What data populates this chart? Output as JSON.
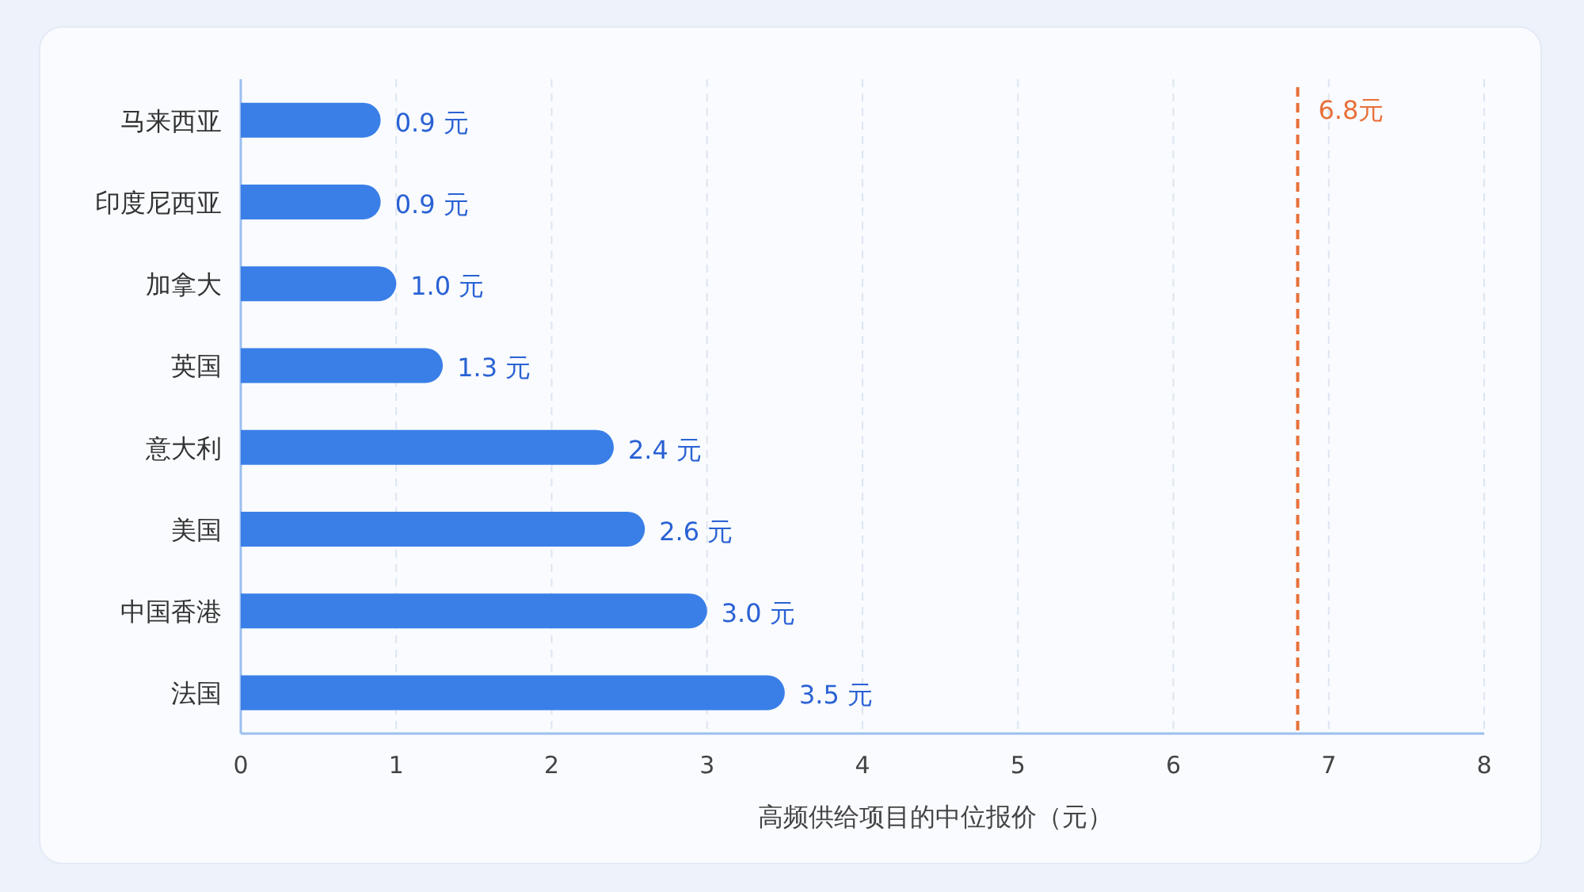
{
  "chart_data": {
    "type": "bar",
    "orientation": "horizontal",
    "categories": [
      "马来西亚",
      "印度尼西亚",
      "加拿大",
      "英国",
      "意大利",
      "美国",
      "中国香港",
      "法国"
    ],
    "values": [
      0.9,
      0.9,
      1.0,
      1.3,
      2.4,
      2.6,
      3.0,
      3.5
    ],
    "value_labels": [
      "0.9 元",
      "0.9 元",
      "1.0 元",
      "1.3 元",
      "2.4 元",
      "2.6 元",
      "3.0 元",
      "3.5 元"
    ],
    "color": "#3a7fe8",
    "xlabel": "高频供给项目的中位报价（元）",
    "xlim": [
      0,
      8
    ],
    "xticks": [
      0,
      1,
      2,
      3,
      4,
      5,
      6,
      7,
      8
    ],
    "grid": "x",
    "ref_lines": [
      {
        "axis": "x",
        "value": 6.8,
        "label": "6.8元",
        "color": "#e8703a",
        "line_style": "dashed"
      }
    ]
  }
}
